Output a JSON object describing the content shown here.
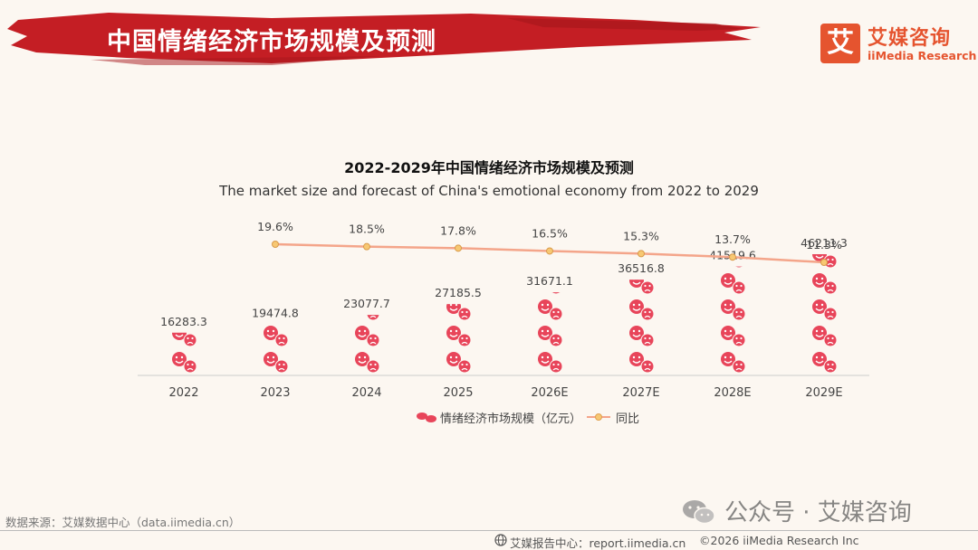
{
  "page": {
    "title": "中国情绪经济市场规模及预测"
  },
  "logo": {
    "mark": "艾",
    "cn": "艾媒咨询",
    "en": "iiMedia Research"
  },
  "chart_data": {
    "type": "bar",
    "title": "2022-2029年中国情绪经济市场规模及预测",
    "subtitle": "The market size and forecast of China's emotional economy from 2022 to 2029",
    "categories": [
      "2022",
      "2023",
      "2024",
      "2025",
      "2026E",
      "2027E",
      "2028E",
      "2029E"
    ],
    "series": [
      {
        "name": "情绪经济市场规模（亿元）",
        "kind": "pictograph-bar",
        "values": [
          16283.3,
          19474.8,
          23077.7,
          27185.5,
          31671.1,
          36516.8,
          41519.6,
          46211.3
        ],
        "labels": [
          "16283.3",
          "19474.8",
          "23077.7",
          "27185.5",
          "31671.1",
          "36516.8",
          "41519.6",
          "46211.3"
        ],
        "color": "#e8455a",
        "icon": "smile-and-frown-face-icons"
      },
      {
        "name": "同比",
        "kind": "line",
        "values": [
          null,
          19.6,
          18.5,
          17.8,
          16.5,
          15.3,
          13.7,
          11.3
        ],
        "labels": [
          "",
          "19.6%",
          "18.5%",
          "17.8%",
          "16.5%",
          "15.3%",
          "13.7%",
          "11.3%"
        ],
        "color": "#f4a58a",
        "marker_color": "#f7c873"
      }
    ],
    "grid": false,
    "legend_position": "bottom"
  },
  "source": {
    "text": "数据来源：艾媒数据中心（data.iimedia.cn）"
  },
  "watermark": {
    "text": "公众号 · 艾媒咨询"
  },
  "footer": {
    "center": "艾媒报告中心：report.iimedia.cn",
    "copyright": "©2026  iiMedia Research  Inc"
  },
  "colors": {
    "banner": "#c41e24",
    "accent": "#e5542f",
    "background": "#fcf7f1"
  }
}
